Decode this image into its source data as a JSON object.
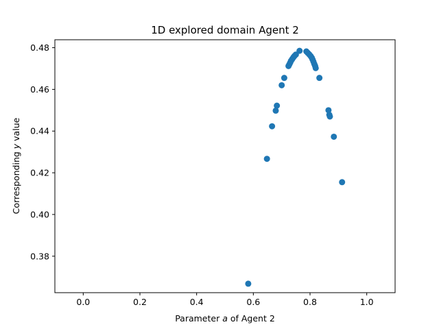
{
  "chart_data": {
    "type": "scatter",
    "title": "1D explored domain Agent 2",
    "xlabel_prefix": "Parameter ",
    "xlabel_var": "a",
    "xlabel_suffix": " of Agent 2",
    "ylabel_prefix": "Corresponding ",
    "ylabel_var": "y",
    "ylabel_suffix": " value",
    "xlim": [
      -0.1,
      1.1
    ],
    "ylim": [
      0.3625,
      0.4838
    ],
    "xticks": [
      0.0,
      0.2,
      0.4,
      0.6,
      0.8,
      1.0
    ],
    "xtick_labels": [
      "0.0",
      "0.2",
      "0.4",
      "0.6",
      "0.8",
      "1.0"
    ],
    "yticks": [
      0.38,
      0.4,
      0.42,
      0.44,
      0.46,
      0.48
    ],
    "ytick_labels": [
      "0.38",
      "0.40",
      "0.42",
      "0.44",
      "0.46",
      "0.48"
    ],
    "grid": false,
    "marker_color": "#1f77b4",
    "points": [
      {
        "x": 0.582,
        "y": 0.3668
      },
      {
        "x": 0.648,
        "y": 0.4267
      },
      {
        "x": 0.666,
        "y": 0.4423
      },
      {
        "x": 0.679,
        "y": 0.4498
      },
      {
        "x": 0.683,
        "y": 0.4522
      },
      {
        "x": 0.7,
        "y": 0.462
      },
      {
        "x": 0.709,
        "y": 0.4655
      },
      {
        "x": 0.724,
        "y": 0.4712
      },
      {
        "x": 0.727,
        "y": 0.472
      },
      {
        "x": 0.73,
        "y": 0.4728
      },
      {
        "x": 0.733,
        "y": 0.4737
      },
      {
        "x": 0.737,
        "y": 0.4745
      },
      {
        "x": 0.741,
        "y": 0.4753
      },
      {
        "x": 0.745,
        "y": 0.476
      },
      {
        "x": 0.75,
        "y": 0.4767
      },
      {
        "x": 0.763,
        "y": 0.4785
      },
      {
        "x": 0.787,
        "y": 0.4782
      },
      {
        "x": 0.792,
        "y": 0.4775
      },
      {
        "x": 0.797,
        "y": 0.4768
      },
      {
        "x": 0.802,
        "y": 0.476
      },
      {
        "x": 0.806,
        "y": 0.4752
      },
      {
        "x": 0.809,
        "y": 0.4743
      },
      {
        "x": 0.812,
        "y": 0.4733
      },
      {
        "x": 0.815,
        "y": 0.4722
      },
      {
        "x": 0.818,
        "y": 0.4712
      },
      {
        "x": 0.82,
        "y": 0.4702
      },
      {
        "x": 0.833,
        "y": 0.4655
      },
      {
        "x": 0.865,
        "y": 0.45
      },
      {
        "x": 0.868,
        "y": 0.4478
      },
      {
        "x": 0.87,
        "y": 0.447
      },
      {
        "x": 0.884,
        "y": 0.4373
      },
      {
        "x": 0.913,
        "y": 0.4155
      }
    ]
  }
}
